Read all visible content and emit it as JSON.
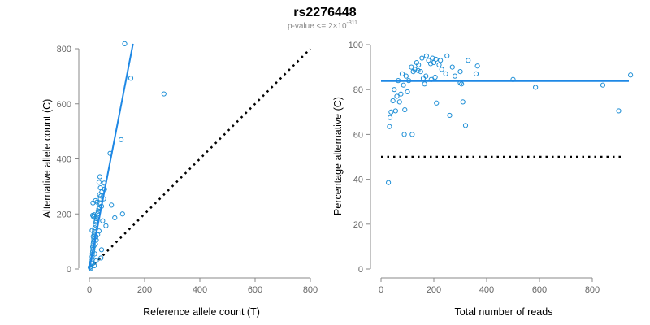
{
  "figure": {
    "title": "rs2276448",
    "subtitle": {
      "prefix": "p-value <= 2×10",
      "exponent": "-311"
    }
  },
  "colors": {
    "points": "#1f8fd6",
    "fit_line": "#1e88e5",
    "reference_line": "#000000",
    "axis": "#888888",
    "tick_labels": "#666666"
  },
  "chart_data": [
    {
      "id": "left",
      "type": "scatter",
      "xlabel": "Reference allele count (T)",
      "ylabel": "Alternative allele count (C)",
      "xlim": [
        0,
        800
      ],
      "ylim": [
        0,
        800
      ],
      "xticks": [
        0,
        200,
        400,
        600,
        800
      ],
      "yticks": [
        0,
        200,
        400,
        600,
        800
      ],
      "grid": false,
      "fit_line": {
        "x": [
          0,
          158
        ],
        "y": [
          0,
          818
        ]
      },
      "reference_line": {
        "x": [
          0,
          800
        ],
        "y": [
          0,
          800
        ],
        "style": "dotted"
      },
      "points": [
        [
          3,
          6
        ],
        [
          5,
          2
        ],
        [
          6,
          10
        ],
        [
          8,
          18
        ],
        [
          9,
          25
        ],
        [
          10,
          33
        ],
        [
          10,
          45
        ],
        [
          11,
          55
        ],
        [
          12,
          64
        ],
        [
          13,
          72
        ],
        [
          12,
          80
        ],
        [
          14,
          92
        ],
        [
          15,
          100
        ],
        [
          16,
          110
        ],
        [
          14,
          118
        ],
        [
          17,
          125
        ],
        [
          18,
          135
        ],
        [
          19,
          142
        ],
        [
          20,
          150
        ],
        [
          22,
          160
        ],
        [
          24,
          170
        ],
        [
          25,
          176
        ],
        [
          26,
          183
        ],
        [
          15,
          190
        ],
        [
          20,
          192
        ],
        [
          12,
          195
        ],
        [
          17,
          197
        ],
        [
          28,
          190
        ],
        [
          30,
          200
        ],
        [
          32,
          210
        ],
        [
          34,
          218
        ],
        [
          36,
          225
        ],
        [
          38,
          240
        ],
        [
          40,
          255
        ],
        [
          42,
          265
        ],
        [
          37,
          270
        ],
        [
          45,
          280
        ],
        [
          40,
          295
        ],
        [
          55,
          290
        ],
        [
          54,
          312
        ],
        [
          35,
          315
        ],
        [
          38,
          335
        ],
        [
          13,
          240
        ],
        [
          22,
          248
        ],
        [
          28,
          243
        ],
        [
          52,
          255
        ],
        [
          44,
          228
        ],
        [
          60,
          157
        ],
        [
          80,
          232
        ],
        [
          92,
          186
        ],
        [
          75,
          420
        ],
        [
          115,
          470
        ],
        [
          120,
          200
        ],
        [
          128,
          818
        ],
        [
          150,
          693
        ],
        [
          270,
          636
        ],
        [
          12,
          20
        ],
        [
          18,
          12
        ],
        [
          20,
          55
        ],
        [
          25,
          105
        ],
        [
          30,
          125
        ],
        [
          35,
          138
        ],
        [
          48,
          175
        ],
        [
          16,
          83
        ],
        [
          22,
          90
        ],
        [
          24,
          118
        ],
        [
          10,
          140
        ],
        [
          44,
          70
        ],
        [
          42,
          40
        ],
        [
          25,
          30
        ]
      ]
    },
    {
      "id": "right",
      "type": "scatter",
      "xlabel": "Total number of reads",
      "ylabel": "Percentage alternative (C)",
      "xlim": [
        0,
        950
      ],
      "ylim": [
        0,
        100
      ],
      "xticks": [
        0,
        200,
        400,
        600,
        800
      ],
      "yticks": [
        0,
        20,
        40,
        60,
        80,
        100
      ],
      "grid": false,
      "fit_line": {
        "x": [
          0,
          950
        ],
        "y": [
          83.8,
          83.8
        ]
      },
      "reference_line": {
        "x": [
          0,
          950
        ],
        "y": [
          50,
          50
        ],
        "style": "dotted"
      },
      "points": [
        [
          28,
          38.5
        ],
        [
          32,
          63.5
        ],
        [
          34,
          67.5
        ],
        [
          38,
          70
        ],
        [
          45,
          75
        ],
        [
          50,
          80
        ],
        [
          55,
          70.5
        ],
        [
          60,
          77
        ],
        [
          65,
          84
        ],
        [
          70,
          74.5
        ],
        [
          75,
          78
        ],
        [
          80,
          87
        ],
        [
          85,
          82
        ],
        [
          88,
          60
        ],
        [
          90,
          71
        ],
        [
          95,
          86
        ],
        [
          100,
          79
        ],
        [
          105,
          84
        ],
        [
          115,
          90
        ],
        [
          118,
          60
        ],
        [
          122,
          88
        ],
        [
          128,
          89
        ],
        [
          135,
          92
        ],
        [
          142,
          91
        ],
        [
          150,
          88
        ],
        [
          155,
          94
        ],
        [
          160,
          85
        ],
        [
          165,
          82.5
        ],
        [
          172,
          95
        ],
        [
          180,
          93
        ],
        [
          188,
          91.5
        ],
        [
          195,
          94
        ],
        [
          200,
          92
        ],
        [
          208,
          93.5
        ],
        [
          205,
          85.5
        ],
        [
          210,
          74
        ],
        [
          220,
          91
        ],
        [
          230,
          89
        ],
        [
          245,
          87
        ],
        [
          250,
          95
        ],
        [
          260,
          68.5
        ],
        [
          270,
          90
        ],
        [
          280,
          86
        ],
        [
          300,
          88
        ],
        [
          305,
          82.5
        ],
        [
          310,
          74.5
        ],
        [
          320,
          64
        ],
        [
          330,
          93
        ],
        [
          360,
          87
        ],
        [
          365,
          90.5
        ],
        [
          500,
          84.5
        ],
        [
          585,
          81
        ],
        [
          840,
          82
        ],
        [
          900,
          70.5
        ],
        [
          945,
          86.5
        ],
        [
          140,
          88.5
        ],
        [
          170,
          86
        ],
        [
          190,
          84.5
        ],
        [
          225,
          93
        ],
        [
          300,
          83
        ]
      ]
    }
  ]
}
